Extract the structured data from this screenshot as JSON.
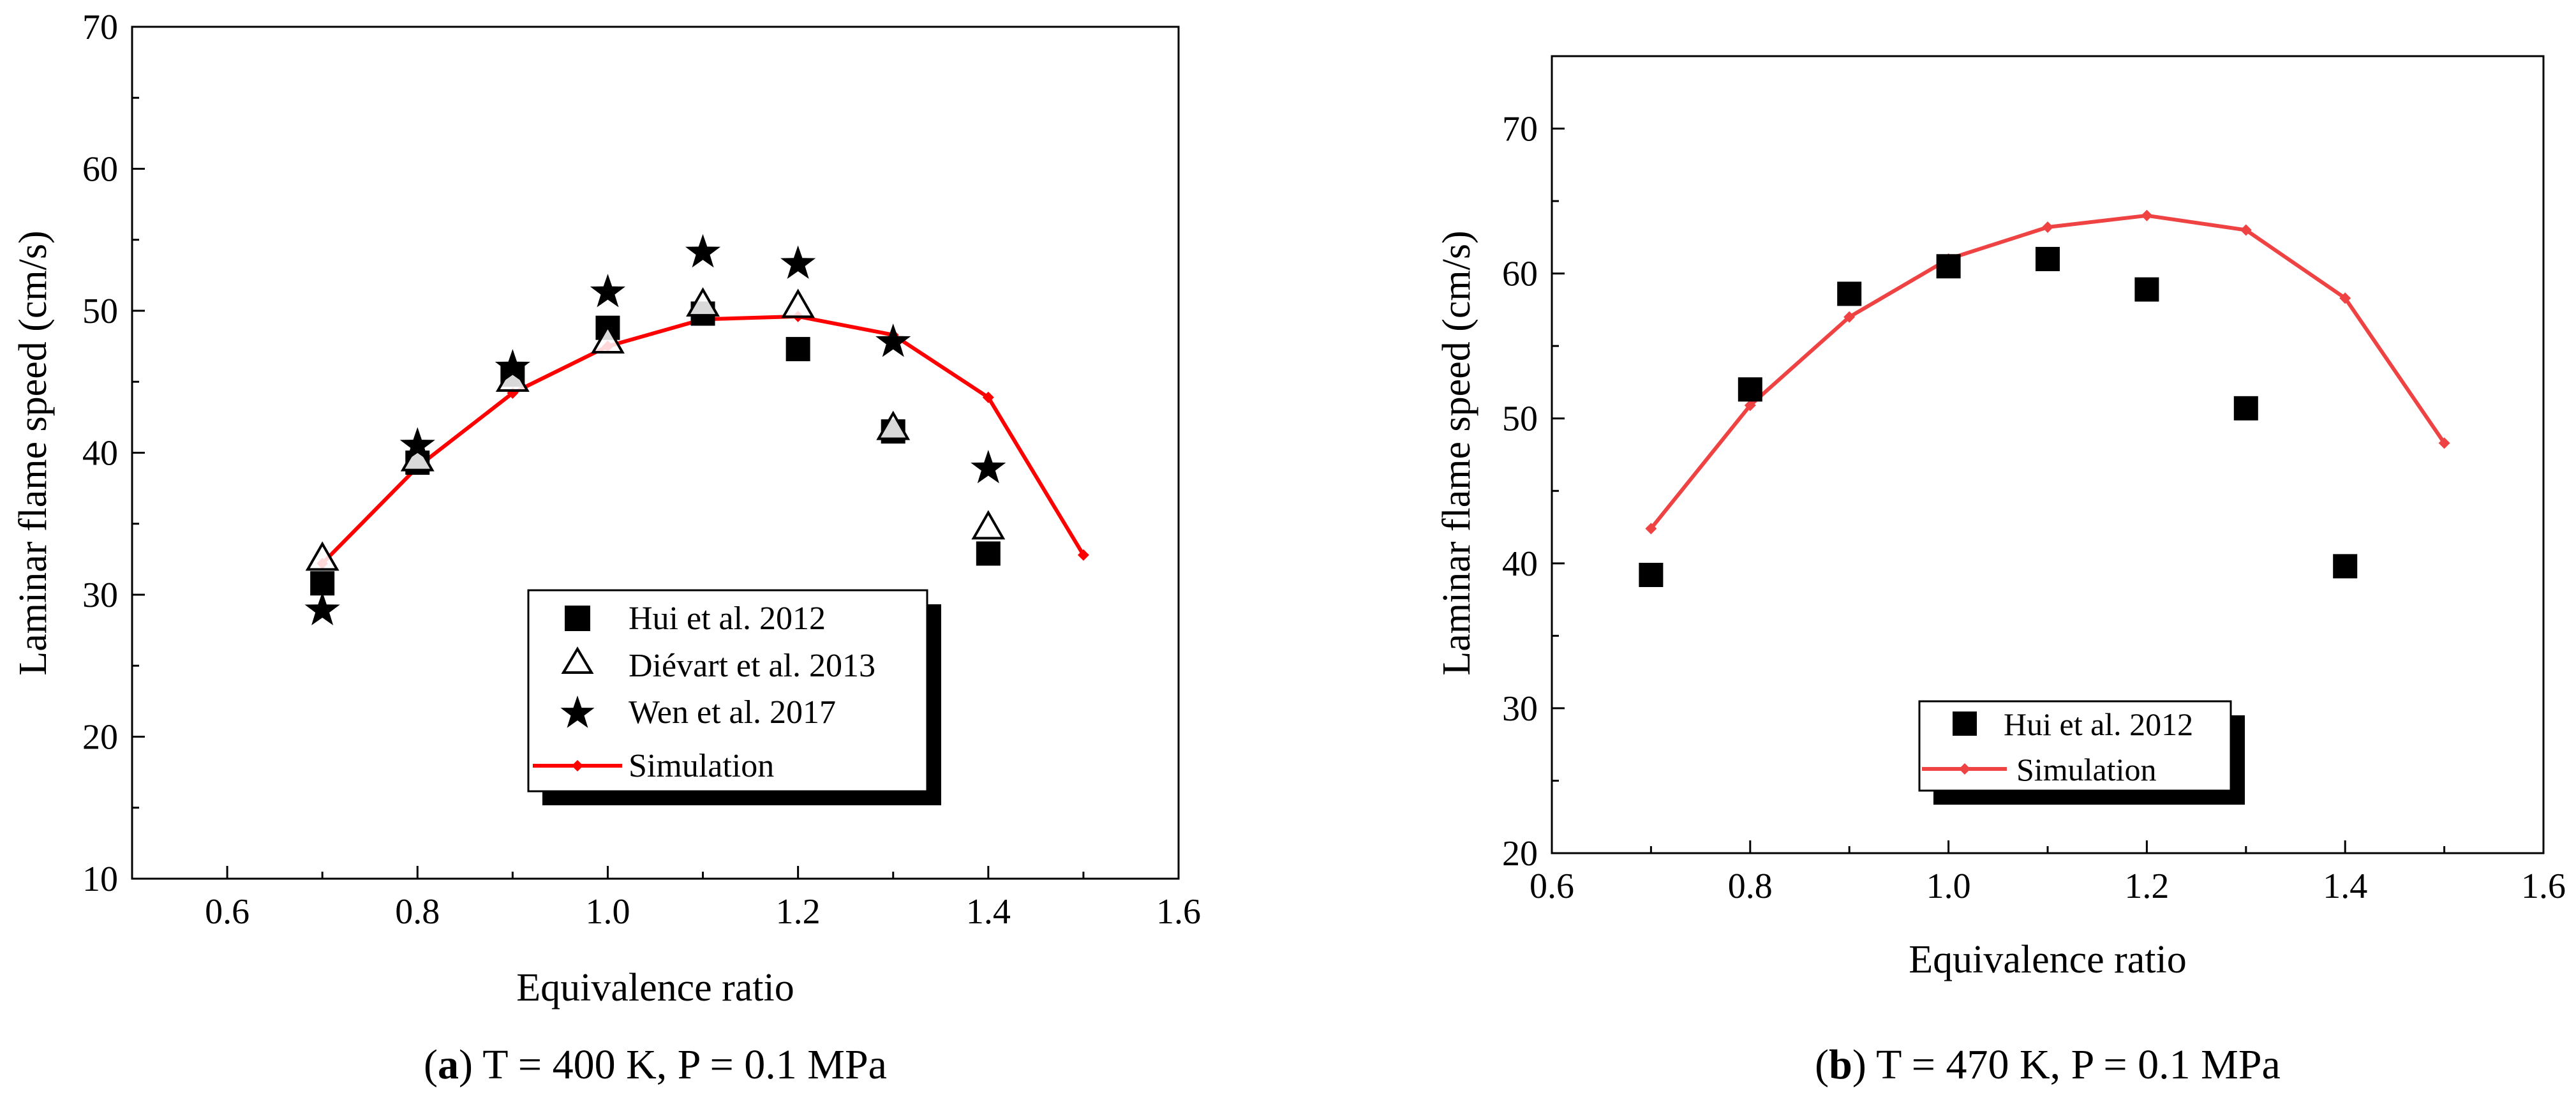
{
  "colors": {
    "simulation_a": "#ff0000",
    "simulation_b": "#ef4343",
    "markers": "#000000"
  },
  "chart_data": [
    {
      "type": "scatter",
      "panel_label": "a",
      "caption": "T = 400 K, P = 0.1 MPa",
      "xlabel": "Equivalence ratio",
      "ylabel": "Laminar flame speed (cm/s)",
      "xlim": [
        0.5,
        1.6
      ],
      "ylim": [
        10,
        70
      ],
      "xticks": [
        0.6,
        0.8,
        1.0,
        1.2,
        1.4,
        1.6
      ],
      "xtick_labels": [
        "0.6",
        "0.8",
        "1.0",
        "1.2",
        "1.4",
        "1.6"
      ],
      "yticks": [
        10,
        20,
        30,
        40,
        50,
        60,
        70
      ],
      "ytick_labels": [
        "10",
        "20",
        "30",
        "40",
        "50",
        "60",
        "70"
      ],
      "legend_position": "bottom-center",
      "series": [
        {
          "name": "Hui et al. 2012",
          "marker": "square",
          "x": [
            0.7,
            0.8,
            0.9,
            1.0,
            1.1,
            1.2,
            1.3,
            1.4
          ],
          "y": [
            30.8,
            39.3,
            45.5,
            48.8,
            49.8,
            47.3,
            41.5,
            32.9
          ]
        },
        {
          "name": "Diévart et al. 2013",
          "marker": "triangle-open",
          "x": [
            0.7,
            0.8,
            0.9,
            1.0,
            1.1,
            1.2,
            1.3,
            1.4
          ],
          "y": [
            32.5,
            39.5,
            45.1,
            47.8,
            50.4,
            50.3,
            41.7,
            34.7
          ]
        },
        {
          "name": "Wen et al. 2017",
          "marker": "star",
          "x": [
            0.7,
            0.8,
            0.9,
            1.0,
            1.1,
            1.2,
            1.3,
            1.4
          ],
          "y": [
            28.9,
            40.5,
            46.0,
            51.3,
            54.1,
            53.3,
            47.8,
            38.9
          ]
        },
        {
          "name": "Simulation",
          "marker": "line-diamond",
          "x": [
            0.7,
            0.8,
            0.9,
            1.0,
            1.1,
            1.2,
            1.3,
            1.4,
            1.5
          ],
          "y": [
            32.2,
            39.0,
            44.2,
            47.5,
            49.4,
            49.6,
            48.3,
            43.9,
            32.8
          ]
        }
      ]
    },
    {
      "type": "scatter",
      "panel_label": "b",
      "caption": "T = 470 K, P = 0.1 MPa",
      "xlabel": "Equivalence ratio",
      "ylabel": "Laminar flame speed (cm/s)",
      "xlim": [
        0.6,
        1.6
      ],
      "ylim": [
        20,
        75
      ],
      "xticks": [
        0.6,
        0.8,
        1.0,
        1.2,
        1.4,
        1.6
      ],
      "xtick_labels": [
        "0.6",
        "0.8",
        "1.0",
        "1.2",
        "1.4",
        "1.6"
      ],
      "yticks": [
        20,
        30,
        40,
        50,
        60,
        70
      ],
      "ytick_labels": [
        "20",
        "30",
        "40",
        "50",
        "60",
        "70"
      ],
      "legend_position": "bottom-center",
      "series": [
        {
          "name": "Hui et al. 2012",
          "marker": "square",
          "x": [
            0.7,
            0.8,
            0.9,
            1.0,
            1.1,
            1.2,
            1.3,
            1.4
          ],
          "y": [
            39.2,
            52.0,
            58.6,
            60.5,
            61.0,
            58.9,
            50.7,
            39.8
          ]
        },
        {
          "name": "Simulation",
          "marker": "line-diamond",
          "x": [
            0.7,
            0.8,
            0.9,
            1.0,
            1.1,
            1.2,
            1.3,
            1.4,
            1.5
          ],
          "y": [
            42.4,
            50.9,
            57.0,
            61.0,
            63.2,
            64.0,
            63.0,
            58.3,
            48.3
          ]
        }
      ]
    }
  ]
}
